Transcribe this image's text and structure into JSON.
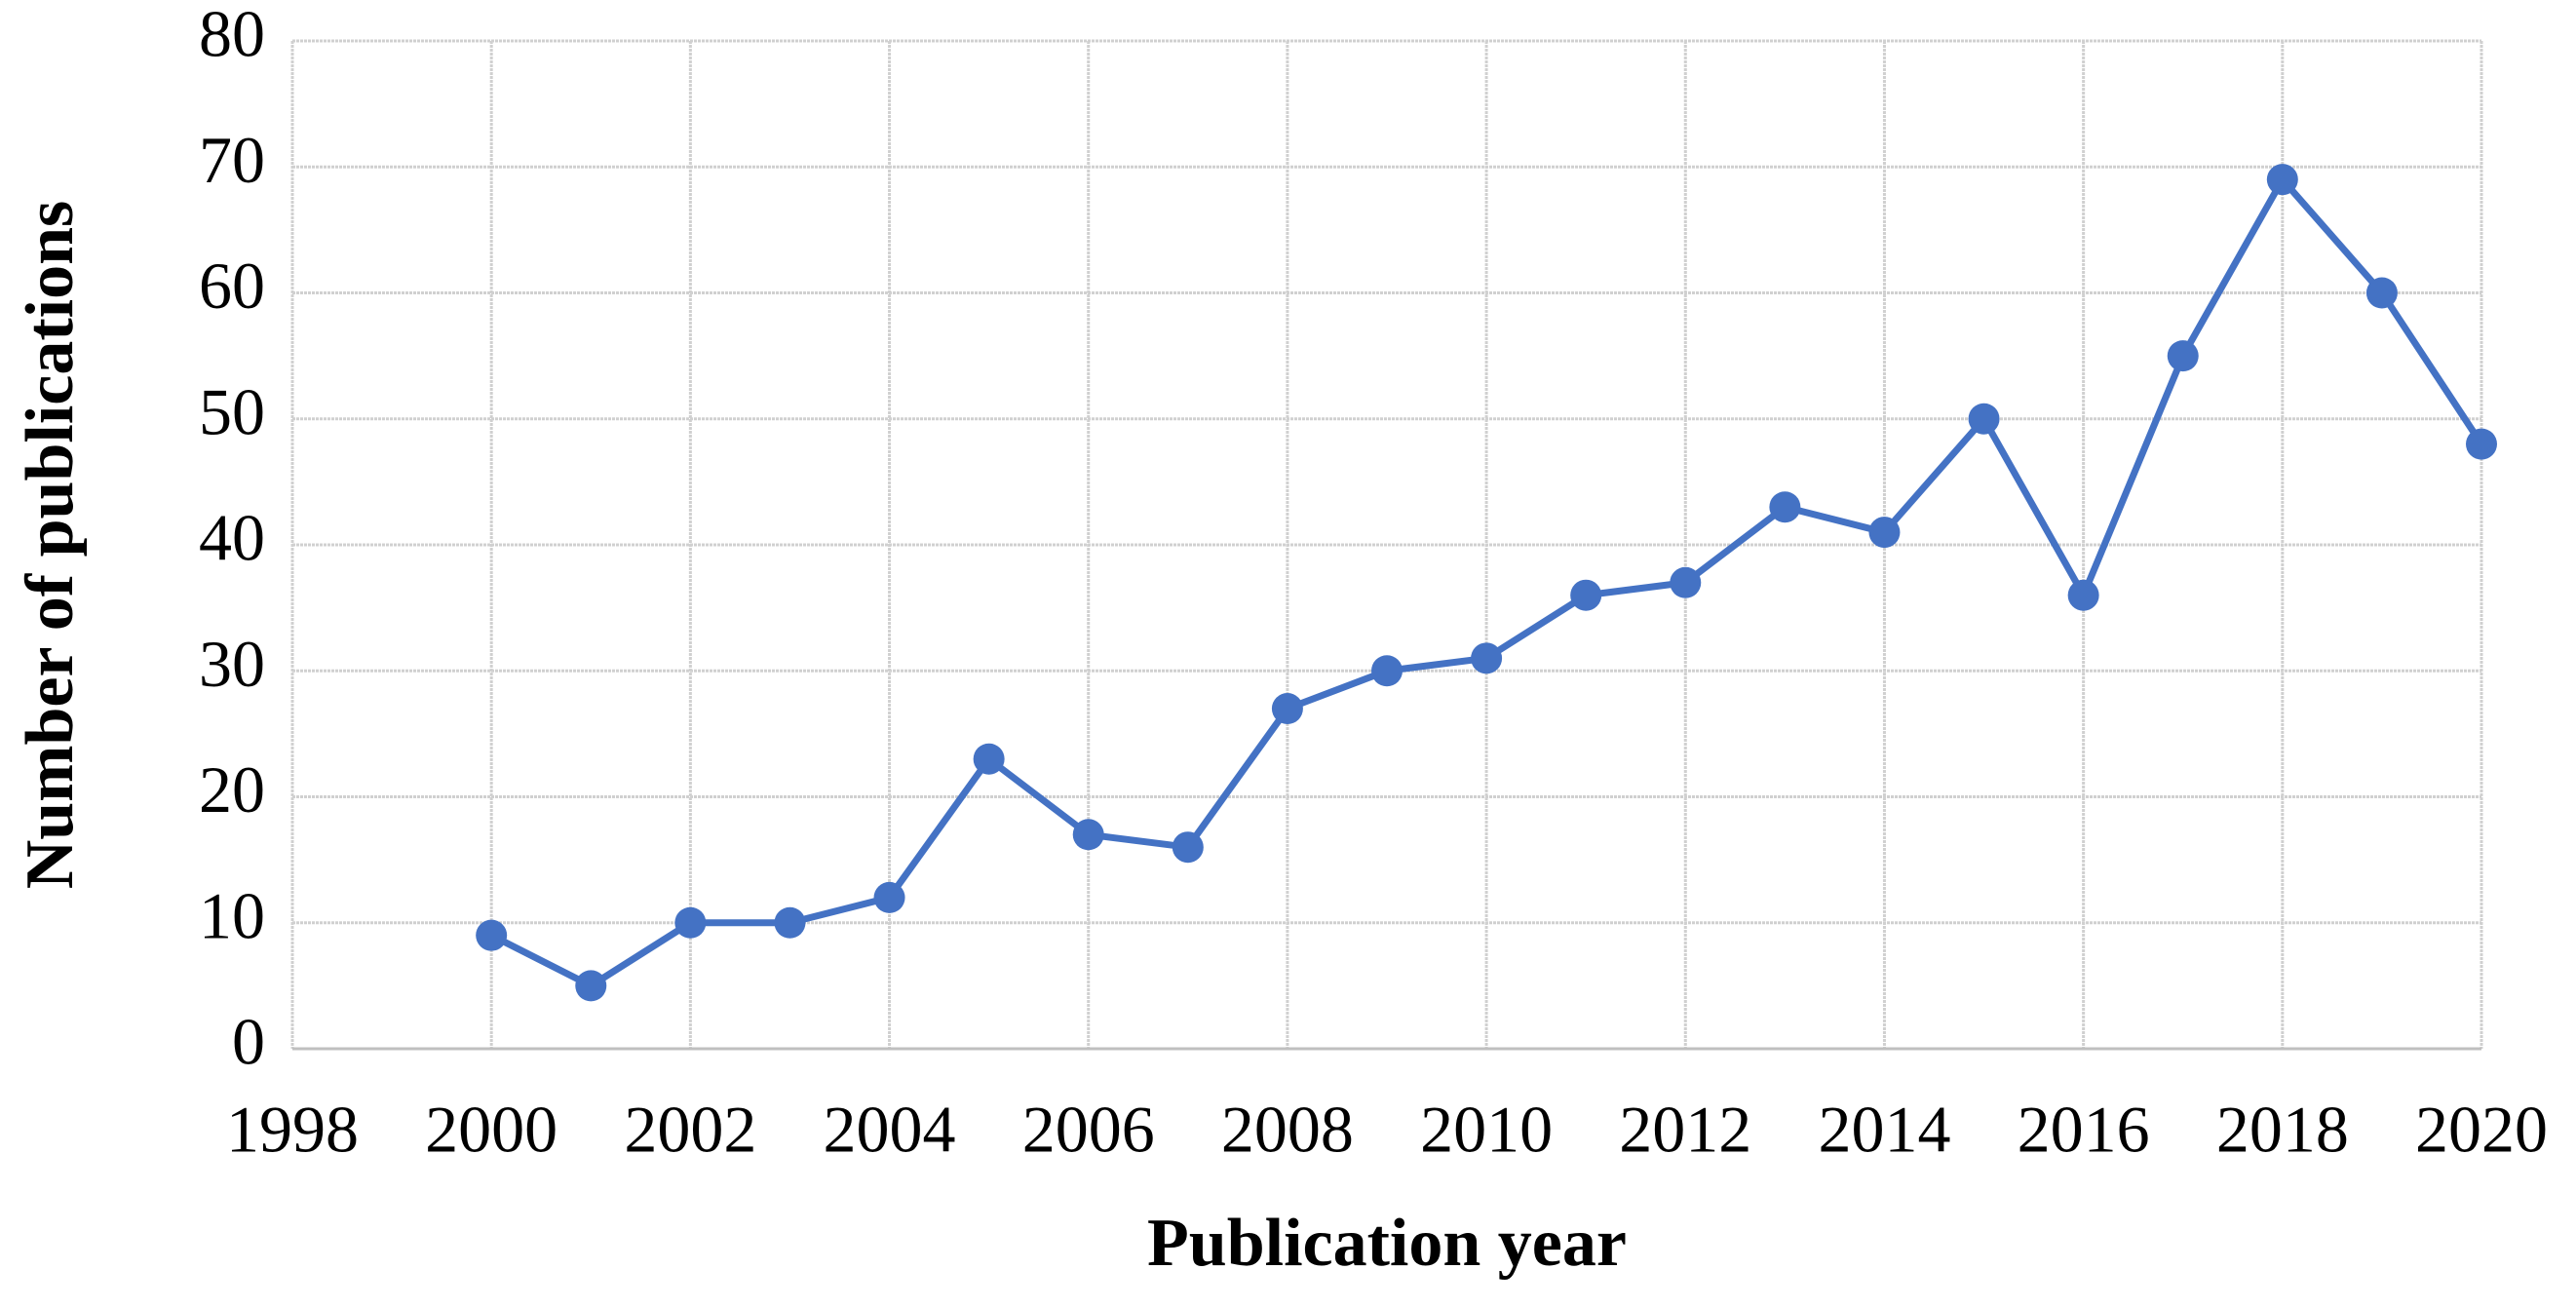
{
  "chart_data": {
    "type": "line",
    "x_label": "Publication year",
    "y_label": "Number of publications",
    "x": [
      2000,
      2001,
      2002,
      2003,
      2004,
      2005,
      2006,
      2007,
      2008,
      2009,
      2010,
      2011,
      2012,
      2013,
      2014,
      2015,
      2016,
      2017,
      2018,
      2019,
      2020
    ],
    "series": [
      {
        "color": "#4472c4",
        "values": [
          9,
          5,
          10,
          10,
          12,
          23,
          17,
          16,
          27,
          30,
          31,
          36,
          37,
          43,
          41,
          50,
          36,
          55,
          69,
          60,
          48
        ]
      }
    ],
    "xlim": [
      1998,
      2020
    ],
    "xticks": [
      1998,
      2000,
      2002,
      2004,
      2006,
      2008,
      2010,
      2012,
      2014,
      2016,
      2018,
      2020
    ],
    "ylim": [
      0,
      80
    ],
    "yticks": [
      0,
      10,
      20,
      30,
      40,
      50,
      60,
      70,
      80
    ],
    "grid": true,
    "markers": true
  }
}
